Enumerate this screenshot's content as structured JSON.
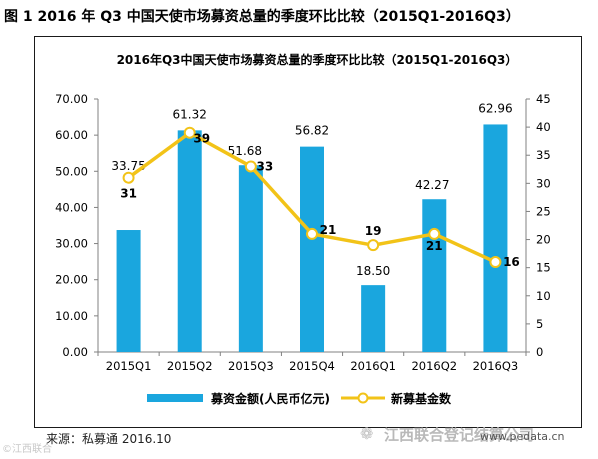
{
  "caption": "图 1 2016 年 Q3 中国天使市场募资总量的季度环比比较（2015Q1-2016Q3）",
  "source": "来源：私募通 2016.10",
  "watermark_left": "©江西联合",
  "watermark": "江西联合登记结算公司",
  "watermark_url": "www.pedata.cn",
  "watermark_icon": "chat-bubble-icon",
  "colors": {
    "bar": "#1aa6de",
    "line": "#f2c318",
    "marker_fill": "#ffffff",
    "axis": "#808080",
    "text": "#000000"
  },
  "chart_data": {
    "type": "bar",
    "title": "2016年Q3中国天使市场募资总量的季度环比比较（2015Q1-2016Q3）",
    "categories": [
      "2015Q1",
      "2015Q2",
      "2015Q3",
      "2015Q4",
      "2016Q1",
      "2016Q2",
      "2016Q3"
    ],
    "series": [
      {
        "name": "募资金额(人民币亿元)",
        "type": "bar",
        "axis": "left",
        "values": [
          33.75,
          61.32,
          51.68,
          56.82,
          18.5,
          42.27,
          62.96
        ],
        "labels": [
          "33.75",
          "61.32",
          "51.68",
          "56.82",
          "18.50",
          "42.27",
          "62.96"
        ]
      },
      {
        "name": "新募基金数",
        "type": "line",
        "axis": "right",
        "values": [
          31,
          39,
          33,
          21,
          19,
          21,
          16
        ],
        "labels": [
          "31",
          "39",
          "33",
          "21",
          "19",
          "21",
          "16"
        ]
      }
    ],
    "y_left": {
      "min": 0,
      "max": 70,
      "ticks": [
        "0.00",
        "10.00",
        "20.00",
        "30.00",
        "40.00",
        "50.00",
        "60.00",
        "70.00"
      ]
    },
    "y_right": {
      "min": 0,
      "max": 45,
      "ticks": [
        "0",
        "5",
        "10",
        "15",
        "20",
        "25",
        "30",
        "35",
        "40",
        "45"
      ]
    },
    "grid": false,
    "legend_position": "bottom"
  }
}
